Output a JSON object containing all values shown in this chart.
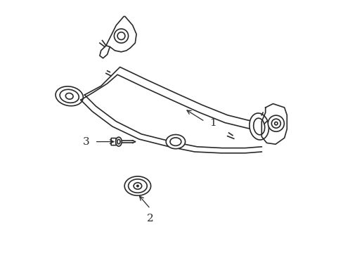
{
  "bg_color": "#ffffff",
  "line_color": "#2a2a2a",
  "line_width": 1.2,
  "fig_width": 4.89,
  "fig_height": 3.6,
  "dpi": 100,
  "label_1": "1",
  "label_2": "2",
  "label_3": "3",
  "font_size": 11
}
